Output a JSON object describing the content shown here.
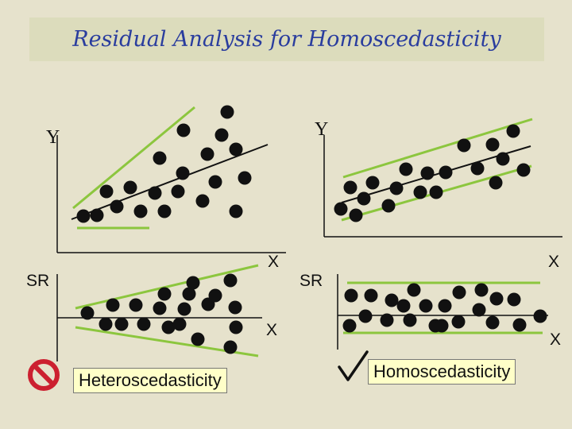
{
  "title": "Residual Analysis for Homoscedasticity",
  "labels": {
    "y_left": "Y",
    "y_right": "Y",
    "x_top_left": "X",
    "x_top_right": "X",
    "sr_left": "SR",
    "sr_right": "SR",
    "x_bottom_left": "X",
    "x_bottom_right": "X"
  },
  "captions": {
    "left": "Heteroscedasticity",
    "right": "Homoscedasticity"
  },
  "icons": {
    "left": "prohibited-icon",
    "right": "checkmark-icon"
  },
  "colors": {
    "background": "#e6e2cc",
    "title_text": "#2a3d9e",
    "band_lines": "#8cc63e",
    "points": "#111111",
    "prohibited": "#cc2030",
    "caption_bg": "#ffffc8"
  }
}
